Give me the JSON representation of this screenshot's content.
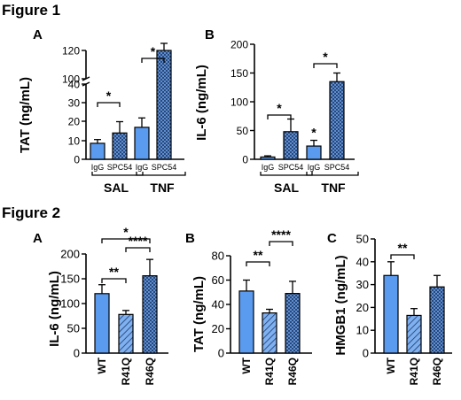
{
  "figure1": {
    "title": "Figure 1"
  },
  "figure2": {
    "title": "Figure 2"
  },
  "colors": {
    "blue": "#5b9bef",
    "hatch_bg": "#6fa3e8",
    "line": "#000000"
  },
  "chart_data": [
    {
      "id": "f1a",
      "panel": "A",
      "type": "bar",
      "ylabel": "TAT (ng/mL)",
      "categories": [
        "IgG",
        "SPC54",
        "IgG",
        "SPC54"
      ],
      "groups": [
        "SAL",
        "TNF"
      ],
      "values": [
        8.5,
        14,
        17,
        120
      ],
      "errors": [
        2,
        6,
        5,
        5
      ],
      "patterns": [
        "solid",
        "cross",
        "solid",
        "cross"
      ],
      "ylim": [
        0,
        130
      ],
      "broken_axis": {
        "lower": [
          0,
          40
        ],
        "upper": [
          100,
          120
        ]
      },
      "yticks": [
        "0",
        "10",
        "20",
        "30",
        "40",
        "100",
        "120"
      ],
      "significance": [
        {
          "from": 0,
          "to": 1,
          "label": "*"
        },
        {
          "from": 2,
          "to": 3,
          "label": "*"
        }
      ]
    },
    {
      "id": "f1b",
      "panel": "B",
      "type": "bar",
      "ylabel": "IL-6 (ng/mL)",
      "categories": [
        "IgG",
        "SPC54",
        "IgG",
        "SPC54"
      ],
      "groups": [
        "SAL",
        "TNF"
      ],
      "values": [
        4,
        48,
        23,
        135
      ],
      "errors": [
        2,
        22,
        10,
        15
      ],
      "patterns": [
        "solid",
        "cross",
        "solid",
        "cross"
      ],
      "ylim": [
        0,
        200
      ],
      "yticks": [
        "0",
        "50",
        "100",
        "150",
        "200"
      ],
      "significance": [
        {
          "from": 0,
          "to": 1,
          "label": "*"
        },
        {
          "from": 2,
          "to": 3,
          "label": "*"
        }
      ],
      "bar_marks": [
        {
          "index": 2,
          "label": "*"
        }
      ]
    },
    {
      "id": "f2a",
      "panel": "A",
      "type": "bar",
      "ylabel": "IL-6 (ng/mL)",
      "categories": [
        "WT",
        "R41Q",
        "R46Q"
      ],
      "values": [
        120,
        78,
        156
      ],
      "errors": [
        18,
        8,
        33
      ],
      "patterns": [
        "solid",
        "diag",
        "cross"
      ],
      "ylim": [
        0,
        200
      ],
      "yticks": [
        "0",
        "50",
        "100",
        "150",
        "200"
      ],
      "significance": [
        {
          "from": 0,
          "to": 2,
          "label": "*"
        },
        {
          "from": 1,
          "to": 2,
          "label": "****"
        },
        {
          "from": 0,
          "to": 1,
          "label": "**"
        }
      ]
    },
    {
      "id": "f2b",
      "panel": "B",
      "type": "bar",
      "ylabel": "TAT (ng/mL)",
      "categories": [
        "WT",
        "R41Q",
        "R46Q"
      ],
      "values": [
        51,
        33,
        49
      ],
      "errors": [
        9,
        3,
        10
      ],
      "patterns": [
        "solid",
        "diag",
        "cross"
      ],
      "ylim": [
        0,
        80
      ],
      "yticks": [
        "0",
        "20",
        "40",
        "60",
        "80"
      ],
      "significance": [
        {
          "from": 1,
          "to": 2,
          "label": "****"
        },
        {
          "from": 0,
          "to": 1,
          "label": "**"
        }
      ]
    },
    {
      "id": "f2c",
      "panel": "C",
      "type": "bar",
      "ylabel": "HMGB1 (ng/mL)",
      "categories": [
        "WT",
        "R41Q",
        "R46Q"
      ],
      "values": [
        34,
        16.5,
        29
      ],
      "errors": [
        6,
        3,
        5
      ],
      "patterns": [
        "solid",
        "diag",
        "cross"
      ],
      "ylim": [
        0,
        50
      ],
      "yticks": [
        "0",
        "10",
        "20",
        "30",
        "40",
        "50"
      ],
      "significance": [
        {
          "from": 0,
          "to": 1,
          "label": "**"
        }
      ]
    }
  ]
}
